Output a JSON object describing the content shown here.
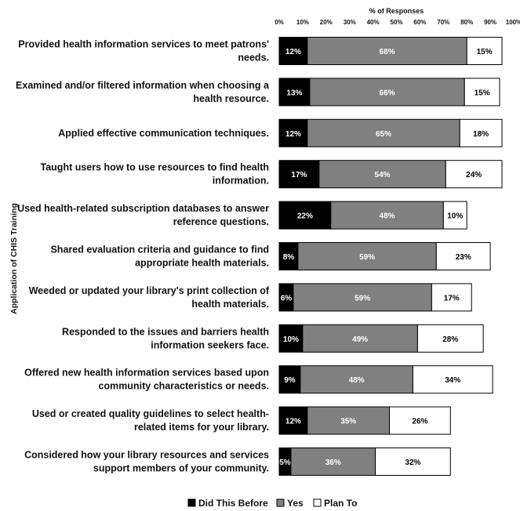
{
  "chart_data": {
    "type": "bar",
    "orientation": "horizontal",
    "stacked": true,
    "xlabel": "% of Responses",
    "ylabel": "Application of CHIS Training",
    "xlim": [
      0,
      100
    ],
    "xticks": [
      "0%",
      "10%",
      "20%",
      "30%",
      "40%",
      "50%",
      "60%",
      "70%",
      "80%",
      "90%",
      "100%"
    ],
    "categories": [
      [
        "Provided health information services to meet patrons'",
        "needs."
      ],
      [
        "Examined and/or filtered information when choosing a",
        "health resource."
      ],
      [
        "Applied effective communication techniques."
      ],
      [
        "Taught users how to use resources to find health",
        "information."
      ],
      [
        "Used health-related subscription databases to answer",
        "reference questions."
      ],
      [
        "Shared evaluation criteria and guidance to find",
        "appropriate health materials."
      ],
      [
        "Weeded or updated your library's print collection of",
        "health materials."
      ],
      [
        "Responded to the issues and barriers health",
        "information seekers face."
      ],
      [
        "Offered new health information services based upon",
        "community characteristics or needs."
      ],
      [
        "Used or created quality guidelines to select health-",
        "related items for your library."
      ],
      [
        "Considered how your library resources and services",
        "support members of your community."
      ]
    ],
    "series": [
      {
        "name": "Did This Before",
        "color": "#000000",
        "label_color": "#ffffff",
        "values": [
          12,
          13,
          12,
          17,
          22,
          8,
          6,
          10,
          9,
          12,
          5
        ],
        "labels": [
          "12%",
          "13%",
          "12%",
          "17%",
          "22%",
          "8%",
          "6%",
          "10%",
          "9%",
          "12%",
          "5%"
        ]
      },
      {
        "name": "Yes",
        "color": "#808080",
        "label_color": "#ffffff",
        "values": [
          68,
          66,
          65,
          54,
          48,
          59,
          59,
          49,
          48,
          35,
          36
        ],
        "labels": [
          "68%",
          "66%",
          "65%",
          "54%",
          "48%",
          "59%",
          "59%",
          "49%",
          "48%",
          "35%",
          "36%"
        ]
      },
      {
        "name": "Plan To",
        "color": "#ffffff",
        "label_color": "#000000",
        "values": [
          15,
          15,
          18,
          24,
          10,
          23,
          17,
          28,
          34,
          26,
          32
        ],
        "labels": [
          "15%",
          "15%",
          "18%",
          "24%",
          "10%",
          "23%",
          "17%",
          "28%",
          "34%",
          "26%",
          "32%"
        ]
      }
    ],
    "legend_position": "bottom",
    "grid": false
  }
}
